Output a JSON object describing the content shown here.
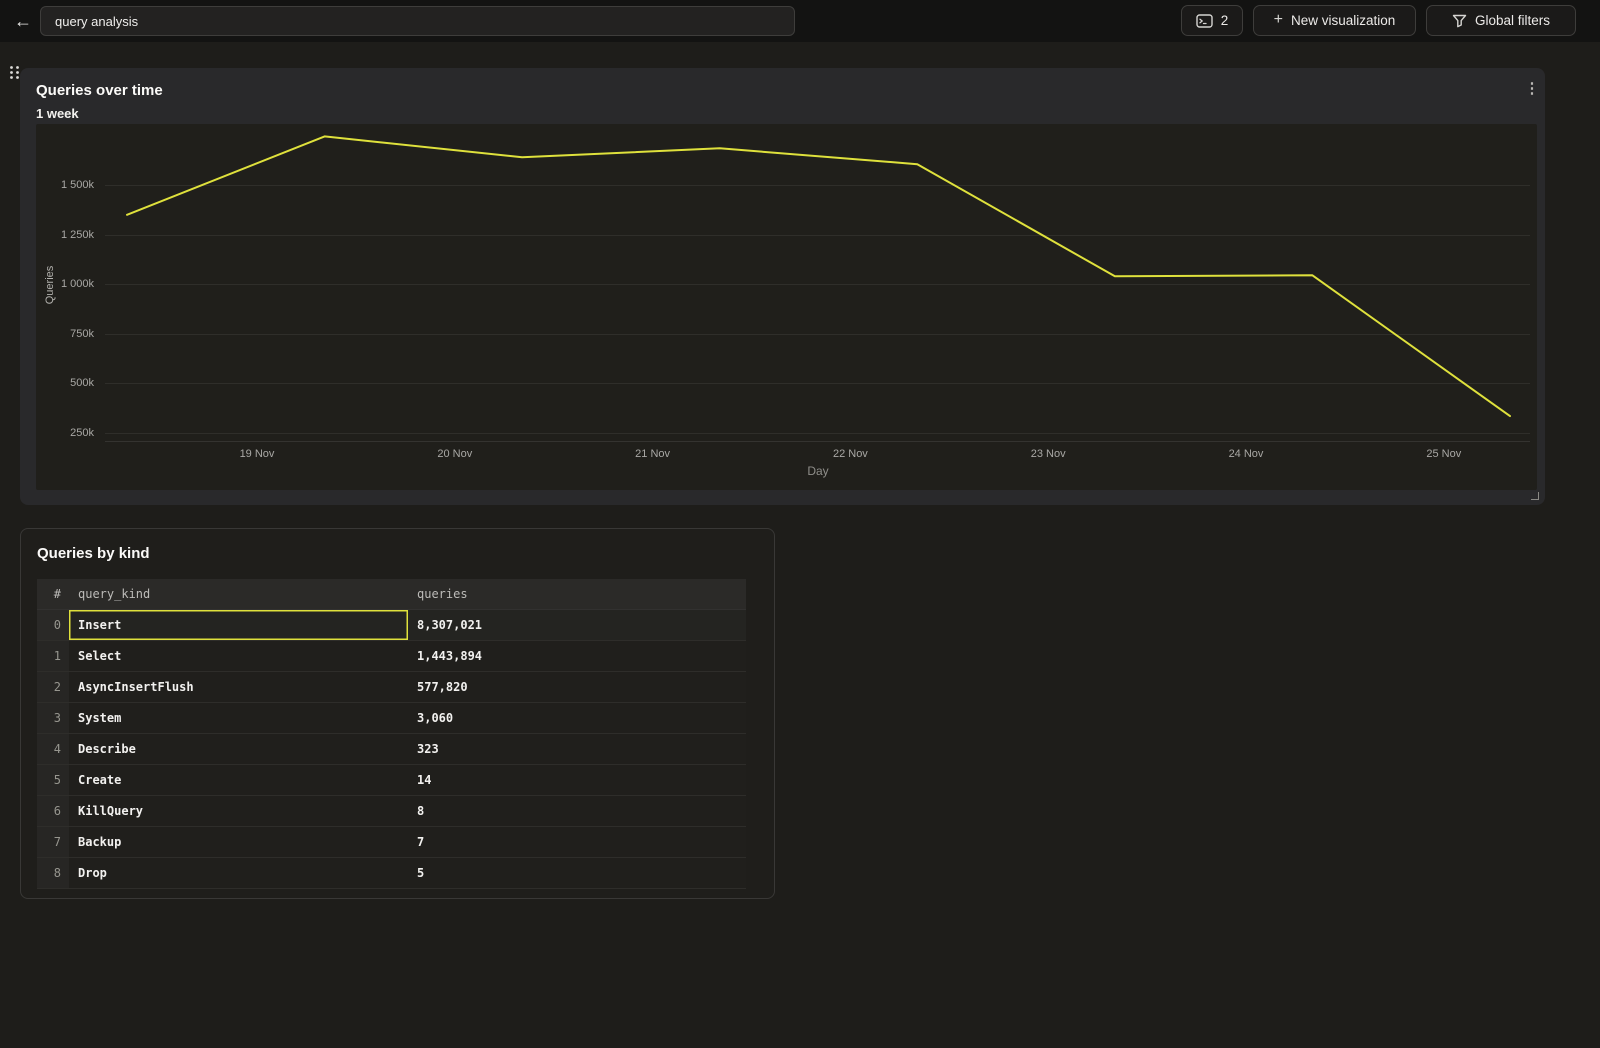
{
  "topbar": {
    "query_title": "query analysis",
    "insights_count": "2",
    "new_visualization_label": "New visualization",
    "global_filters_label": "Global filters"
  },
  "chart_panel": {
    "title": "Queries over time",
    "subtitle": "1 week"
  },
  "table_panel": {
    "title": "Queries by kind"
  },
  "chart_data": [
    {
      "type": "line",
      "title": "Queries over time",
      "subtitle": "1 week",
      "xlabel": "Day",
      "ylabel": "Queries",
      "x_tick_labels": [
        "19 Nov",
        "20 Nov",
        "21 Nov",
        "22 Nov",
        "23 Nov",
        "24 Nov",
        "25 Nov"
      ],
      "y_tick_labels": [
        "250k",
        "500k",
        "750k",
        "1 000k",
        "1 250k",
        "1 500k"
      ],
      "y_tick_values_k": [
        250,
        500,
        750,
        1000,
        1250,
        1500
      ],
      "grid": "horizontal-only",
      "legend": "none",
      "series": [
        {
          "name": "Queries",
          "color": "#dfe13c",
          "values_k": [
            1350,
            1745,
            1640,
            1685,
            1605,
            1040,
            1045,
            335
          ]
        }
      ]
    },
    {
      "type": "table",
      "title": "Queries by kind",
      "columns": [
        "#",
        "query_kind",
        "queries"
      ],
      "rows": [
        {
          "index": "0",
          "query_kind": "Insert",
          "queries": "8,307,021",
          "selected": true
        },
        {
          "index": "1",
          "query_kind": "Select",
          "queries": "1,443,894",
          "selected": false
        },
        {
          "index": "2",
          "query_kind": "AsyncInsertFlush",
          "queries": "577,820",
          "selected": false
        },
        {
          "index": "3",
          "query_kind": "System",
          "queries": "3,060",
          "selected": false
        },
        {
          "index": "4",
          "query_kind": "Describe",
          "queries": "323",
          "selected": false
        },
        {
          "index": "5",
          "query_kind": "Create",
          "queries": "14",
          "selected": false
        },
        {
          "index": "6",
          "query_kind": "KillQuery",
          "queries": "8",
          "selected": false
        },
        {
          "index": "7",
          "query_kind": "Backup",
          "queries": "7",
          "selected": false
        },
        {
          "index": "8",
          "query_kind": "Drop",
          "queries": "5",
          "selected": false
        }
      ]
    }
  ],
  "colors": {
    "line_accent": "#dfe13c",
    "selected_cell_border": "#dfe13c",
    "panel_chart_bg": "#29292b",
    "plot_bg": "#201f1b",
    "page_bg": "#1e1d1a",
    "topbar_bg": "#131312"
  }
}
